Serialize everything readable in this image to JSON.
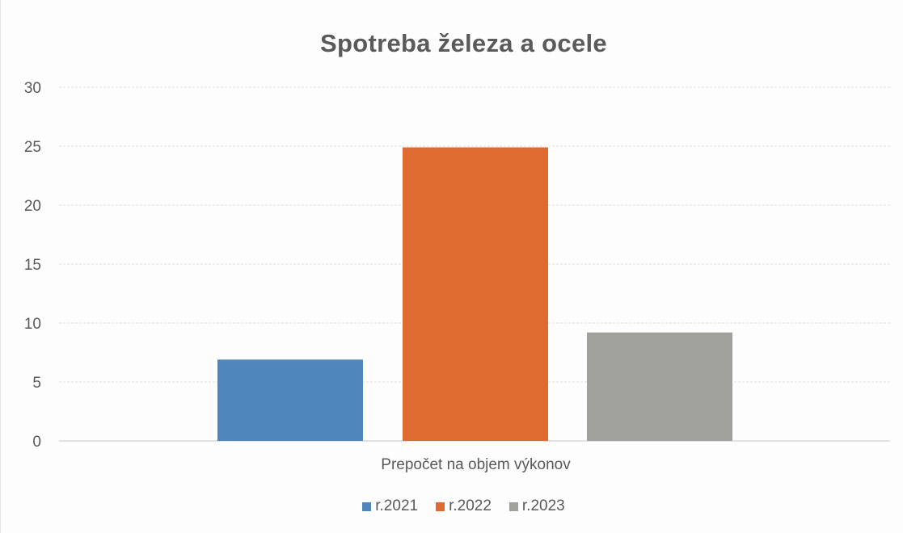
{
  "chart_data": {
    "type": "bar",
    "title": "Spotreba železa a ocele",
    "xlabel": "Prepočet na objem výkonov",
    "ylabel": "",
    "categories": [
      "Prepočet na objem výkonov"
    ],
    "series": [
      {
        "name": "r.2021",
        "values": [
          6.9
        ],
        "color": "#4f86bb"
      },
      {
        "name": "r.2022",
        "values": [
          24.9
        ],
        "color": "#df6b31"
      },
      {
        "name": "r.2023",
        "values": [
          9.2
        ],
        "color": "#a0a09c"
      }
    ],
    "ylim": [
      0,
      30
    ],
    "yticks": [
      "0",
      "5",
      "10",
      "15",
      "20",
      "25",
      "30"
    ],
    "grid": true,
    "legend_position": "bottom"
  }
}
